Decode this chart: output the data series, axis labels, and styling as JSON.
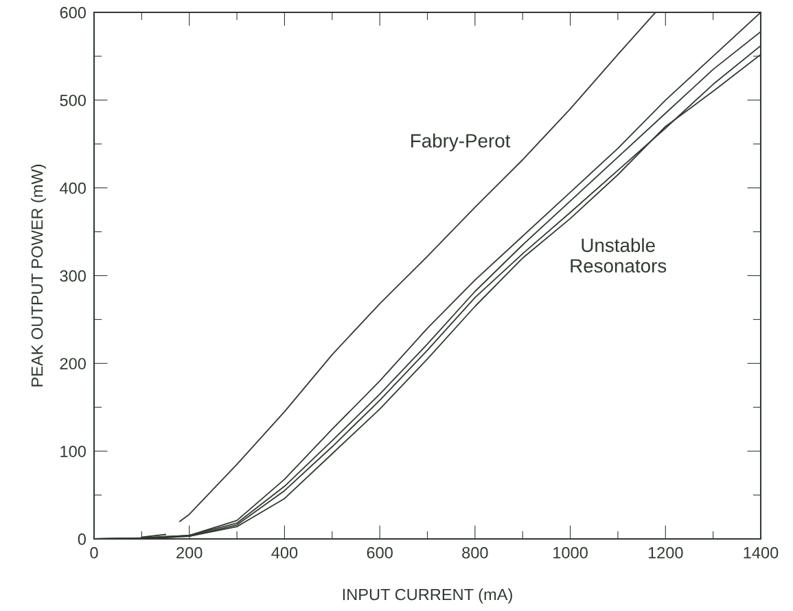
{
  "chart_data": {
    "type": "line",
    "xlabel": "INPUT CURRENT (mA)",
    "ylabel": "PEAK OUTPUT POWER (mW)",
    "xlim": [
      0,
      1400
    ],
    "ylim": [
      0,
      600
    ],
    "xticks": [
      0,
      {
        "value": 100,
        "label": null
      },
      200,
      {
        "value": 300,
        "label": null
      },
      400,
      {
        "value": 500,
        "label": null
      },
      600,
      {
        "value": 700,
        "label": null
      },
      800,
      {
        "value": 900,
        "label": null
      },
      1000,
      {
        "value": 1100,
        "label": null
      },
      1200,
      {
        "value": 1300,
        "label": null
      },
      1400
    ],
    "yticks": [
      0,
      {
        "value": 50,
        "label": null
      },
      100,
      {
        "value": 150,
        "label": null
      },
      200,
      {
        "value": 250,
        "label": null
      },
      300,
      {
        "value": 350,
        "label": null
      },
      400,
      {
        "value": 450,
        "label": null
      },
      500,
      {
        "value": 550,
        "label": null
      },
      600
    ],
    "grid": false,
    "marker": "none",
    "line_style": "solid",
    "series": [
      {
        "color": "#2f3a30",
        "x": [
          180,
          200,
          300,
          400,
          500,
          600,
          700,
          800,
          900,
          1000,
          1100,
          1179
        ],
        "values": [
          20,
          28,
          85,
          145,
          210,
          268,
          322,
          378,
          432,
          490,
          552,
          600
        ]
      },
      {
        "color": "#2f3a30",
        "x": [
          0,
          100,
          200,
          300,
          400,
          500,
          600,
          700,
          800,
          900,
          1000,
          1100,
          1200,
          1300,
          1400
        ],
        "values": [
          0,
          1,
          4,
          21,
          68,
          125,
          180,
          240,
          295,
          345,
          395,
          445,
          500,
          550,
          600
        ]
      },
      {
        "color": "#2f3a30",
        "x": [
          0,
          100,
          200,
          300,
          400,
          500,
          600,
          700,
          800,
          900,
          1000,
          1100,
          1200,
          1300,
          1400
        ],
        "values": [
          0,
          1,
          4,
          18,
          60,
          112,
          165,
          222,
          282,
          335,
          385,
          435,
          485,
          535,
          578
        ]
      },
      {
        "color": "#2f3a30",
        "x": [
          0,
          100,
          200,
          300,
          400,
          500,
          600,
          700,
          800,
          900,
          1000,
          1100,
          1200,
          1300,
          1400
        ],
        "values": [
          0,
          1,
          3,
          16,
          55,
          105,
          158,
          215,
          275,
          325,
          372,
          420,
          468,
          518,
          562
        ]
      },
      {
        "color": "#2f3a30",
        "x": [
          0,
          100,
          200,
          300,
          400,
          500,
          600,
          700,
          800,
          900,
          1000,
          1100,
          1200,
          1300,
          1400
        ],
        "values": [
          0,
          0,
          3,
          14,
          46,
          97,
          148,
          205,
          265,
          320,
          365,
          415,
          470,
          510,
          552
        ]
      },
      {
        "color": "#2f3a30",
        "x": [
          100,
          150
        ],
        "values": [
          2,
          5
        ]
      }
    ],
    "annotations": [
      "Fabry-Perot",
      "Unstable\nResonators"
    ]
  }
}
